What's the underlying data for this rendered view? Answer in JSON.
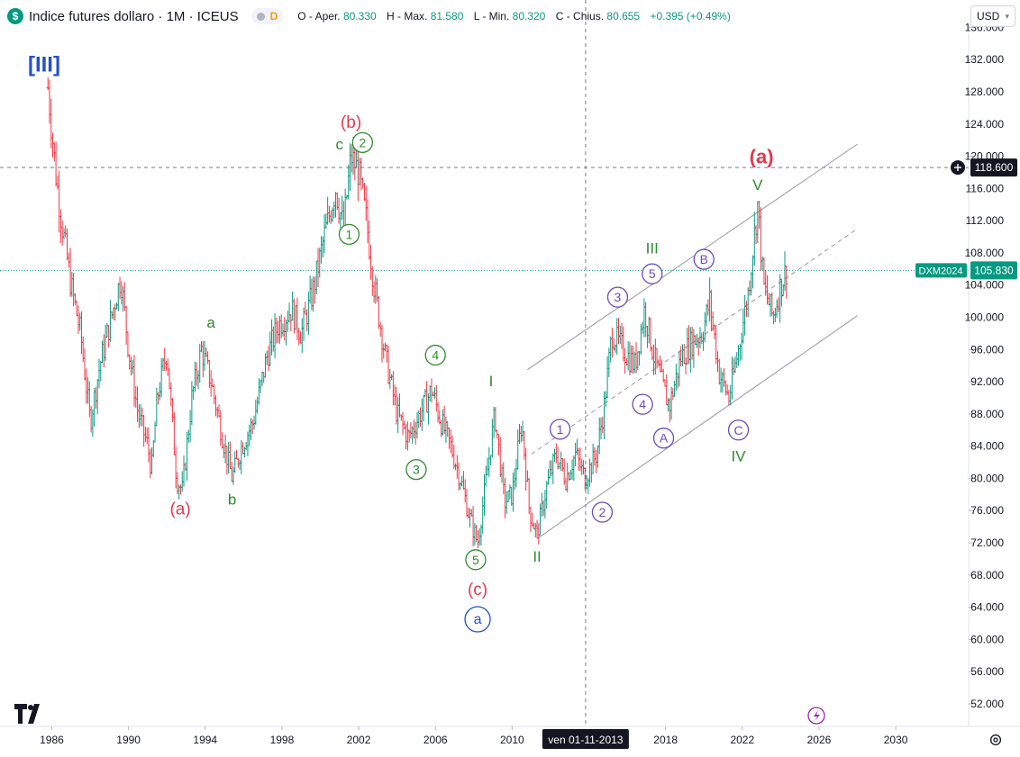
{
  "header": {
    "logo_letter": "$",
    "title": "Indice futures dollaro · 1M · ICEUS",
    "d_badge": "D",
    "ohlc": [
      {
        "key": "O - Aper.",
        "value": "80.330"
      },
      {
        "key": "H - Max.",
        "value": "81.580"
      },
      {
        "key": "L - Min.",
        "value": "80.320"
      },
      {
        "key": "C - Chius.",
        "value": "80.655"
      }
    ],
    "change": "+0.395 (+0.49%)"
  },
  "currency": {
    "label": "USD",
    "caret": "▾"
  },
  "colors": {
    "up": "#089981",
    "down": "#f23645",
    "red_label": "#e03a4f",
    "green_label": "#2e8b2e",
    "purple_label": "#6a4fb5",
    "blue_label": "#2450c8",
    "channel": "#9598a1"
  },
  "chart_data": {
    "type": "bar",
    "subtype": "ohlc-monthly",
    "x_ticks": [
      "1986",
      "1990",
      "1994",
      "1998",
      "2002",
      "2006",
      "2010",
      "2018",
      "2022",
      "2026",
      "2030"
    ],
    "y_ticks": [
      "52.000",
      "56.000",
      "60.000",
      "64.000",
      "68.000",
      "72.000",
      "76.000",
      "80.000",
      "84.000",
      "88.000",
      "92.000",
      "96.000",
      "100.000",
      "104.000",
      "108.000",
      "112.000",
      "116.000",
      "120.000",
      "124.000",
      "128.000",
      "132.000",
      "136.000"
    ],
    "xlim": [
      1983.3,
      2033.8
    ],
    "ylim": [
      49.2,
      139.4
    ],
    "crosshair": {
      "date_label": "ven 01-11-2013",
      "x": 2013.83,
      "price_label": "118.600",
      "y": 118.6
    },
    "last_price": {
      "symbol": "DXM2024",
      "label": "105.830",
      "y": 105.83
    },
    "price_path": [
      [
        1985.8,
        128.5
      ],
      [
        1986.2,
        118
      ],
      [
        1986.5,
        112
      ],
      [
        1987.0,
        104
      ],
      [
        1987.5,
        98
      ],
      [
        1988.0,
        87
      ],
      [
        1988.5,
        94
      ],
      [
        1989.2,
        101
      ],
      [
        1989.6,
        105
      ],
      [
        1990.0,
        96
      ],
      [
        1990.5,
        88
      ],
      [
        1991.0,
        84
      ],
      [
        1991.2,
        81
      ],
      [
        1991.5,
        90
      ],
      [
        1992.0,
        96
      ],
      [
        1992.5,
        80
      ],
      [
        1992.8,
        78.5
      ],
      [
        1993.3,
        90
      ],
      [
        1993.8,
        96
      ],
      [
        1994.3,
        92
      ],
      [
        1995.0,
        84
      ],
      [
        1995.4,
        80
      ],
      [
        1995.9,
        84
      ],
      [
        1996.5,
        87
      ],
      [
        1997.2,
        95
      ],
      [
        1997.8,
        99
      ],
      [
        1998.5,
        101
      ],
      [
        1999.0,
        98
      ],
      [
        1999.6,
        103
      ],
      [
        2000.2,
        110
      ],
      [
        2000.8,
        116
      ],
      [
        2001.2,
        111
      ],
      [
        2001.6,
        120
      ],
      [
        2002.0,
        118
      ],
      [
        2002.4,
        112
      ],
      [
        2002.8,
        104
      ],
      [
        2003.4,
        95
      ],
      [
        2004.0,
        88
      ],
      [
        2004.6,
        85
      ],
      [
        2005.2,
        88
      ],
      [
        2005.8,
        91
      ],
      [
        2006.3,
        87
      ],
      [
        2006.8,
        84
      ],
      [
        2007.3,
        80
      ],
      [
        2007.8,
        75
      ],
      [
        2008.2,
        72
      ],
      [
        2008.6,
        79
      ],
      [
        2009.1,
        88
      ],
      [
        2009.6,
        77
      ],
      [
        2010.0,
        78
      ],
      [
        2010.5,
        87
      ],
      [
        2010.9,
        76
      ],
      [
        2011.3,
        73
      ],
      [
        2011.8,
        79
      ],
      [
        2012.3,
        83
      ],
      [
        2012.8,
        80
      ],
      [
        2013.3,
        83
      ],
      [
        2013.8,
        80
      ],
      [
        2014.4,
        83
      ],
      [
        2014.8,
        89
      ],
      [
        2015.2,
        98
      ],
      [
        2015.8,
        96
      ],
      [
        2016.4,
        94
      ],
      [
        2016.9,
        101
      ],
      [
        2017.4,
        95
      ],
      [
        2017.9,
        91
      ],
      [
        2018.2,
        89
      ],
      [
        2018.8,
        95
      ],
      [
        2019.4,
        97
      ],
      [
        2019.9,
        98
      ],
      [
        2020.3,
        102
      ],
      [
        2020.8,
        93
      ],
      [
        2021.3,
        90
      ],
      [
        2021.8,
        96
      ],
      [
        2022.3,
        103
      ],
      [
        2022.8,
        114
      ],
      [
        2023.1,
        104
      ],
      [
        2023.6,
        100
      ],
      [
        2024.0,
        104
      ],
      [
        2024.3,
        105.83
      ]
    ],
    "channel": {
      "upper": [
        [
          2010.8,
          93.5
        ],
        [
          2028.0,
          121.5
        ]
      ],
      "lower": [
        [
          2011.3,
          72.5
        ],
        [
          2028.0,
          100.2
        ]
      ],
      "mid": [
        [
          2011.0,
          83.0
        ],
        [
          2028.0,
          111.0
        ]
      ]
    },
    "wave_labels": [
      {
        "text": "[III]",
        "x": 1985.6,
        "y": 131.2,
        "style": "blue-bold"
      },
      {
        "text": "(a)",
        "x": 1992.7,
        "y": 76.2,
        "style": "red"
      },
      {
        "text": "a",
        "x": 1994.3,
        "y": 99.4,
        "style": "green"
      },
      {
        "text": "b",
        "x": 1995.4,
        "y": 77.4,
        "style": "green"
      },
      {
        "text": "(b)",
        "x": 2001.6,
        "y": 124.2,
        "style": "red"
      },
      {
        "text": "c",
        "x": 2001.0,
        "y": 121.5,
        "style": "green"
      },
      {
        "text": "2",
        "x": 2002.2,
        "y": 121.7,
        "style": "green-circle"
      },
      {
        "text": "1",
        "x": 2001.5,
        "y": 110.3,
        "style": "green-circle"
      },
      {
        "text": "4",
        "x": 2006.0,
        "y": 95.3,
        "style": "green-circle"
      },
      {
        "text": "3",
        "x": 2005.0,
        "y": 81.1,
        "style": "green-circle"
      },
      {
        "text": "5",
        "x": 2008.1,
        "y": 69.9,
        "style": "green-circle"
      },
      {
        "text": "(c)",
        "x": 2008.2,
        "y": 66.2,
        "style": "red"
      },
      {
        "text": "a",
        "x": 2008.2,
        "y": 62.5,
        "style": "blue-circle"
      },
      {
        "text": "I",
        "x": 2008.9,
        "y": 92.1,
        "style": "green"
      },
      {
        "text": "II",
        "x": 2011.3,
        "y": 70.3,
        "style": "green"
      },
      {
        "text": "1",
        "x": 2012.5,
        "y": 86.1,
        "style": "purple-circle"
      },
      {
        "text": "2",
        "x": 2014.7,
        "y": 75.8,
        "style": "purple-circle"
      },
      {
        "text": "3",
        "x": 2015.5,
        "y": 102.5,
        "style": "purple-circle"
      },
      {
        "text": "5",
        "x": 2017.3,
        "y": 105.4,
        "style": "purple-circle"
      },
      {
        "text": "III",
        "x": 2017.3,
        "y": 108.6,
        "style": "green"
      },
      {
        "text": "4",
        "x": 2016.8,
        "y": 89.2,
        "style": "purple-circle"
      },
      {
        "text": "A",
        "x": 2017.9,
        "y": 85.0,
        "style": "purple-circle"
      },
      {
        "text": "B",
        "x": 2020.0,
        "y": 107.2,
        "style": "purple-circle"
      },
      {
        "text": "C",
        "x": 2021.8,
        "y": 86.0,
        "style": "purple-circle"
      },
      {
        "text": "IV",
        "x": 2021.8,
        "y": 82.8,
        "style": "green"
      },
      {
        "text": "V",
        "x": 2022.8,
        "y": 116.5,
        "style": "green"
      },
      {
        "text": "(a)",
        "x": 2023.0,
        "y": 119.8,
        "style": "red-bold"
      }
    ]
  }
}
